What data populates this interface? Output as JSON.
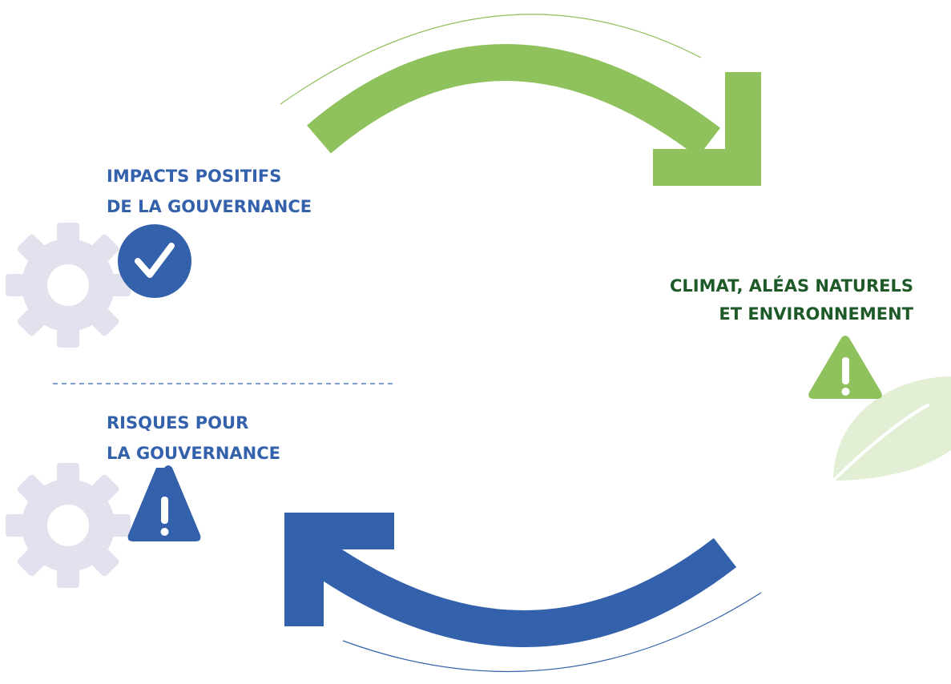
{
  "nodes": [
    {
      "label_lines": [
        "IMPACTS POSITIFS",
        "DE LA GOUVERNANCE"
      ]
    },
    {
      "label_lines": [
        "CLIMAT, ALÉAS NATURELS",
        "ET ENVIRONNEMENT"
      ]
    },
    {
      "label_lines": [
        "RISQUES POUR",
        "LA GOUVERNANCE"
      ]
    }
  ]
}
